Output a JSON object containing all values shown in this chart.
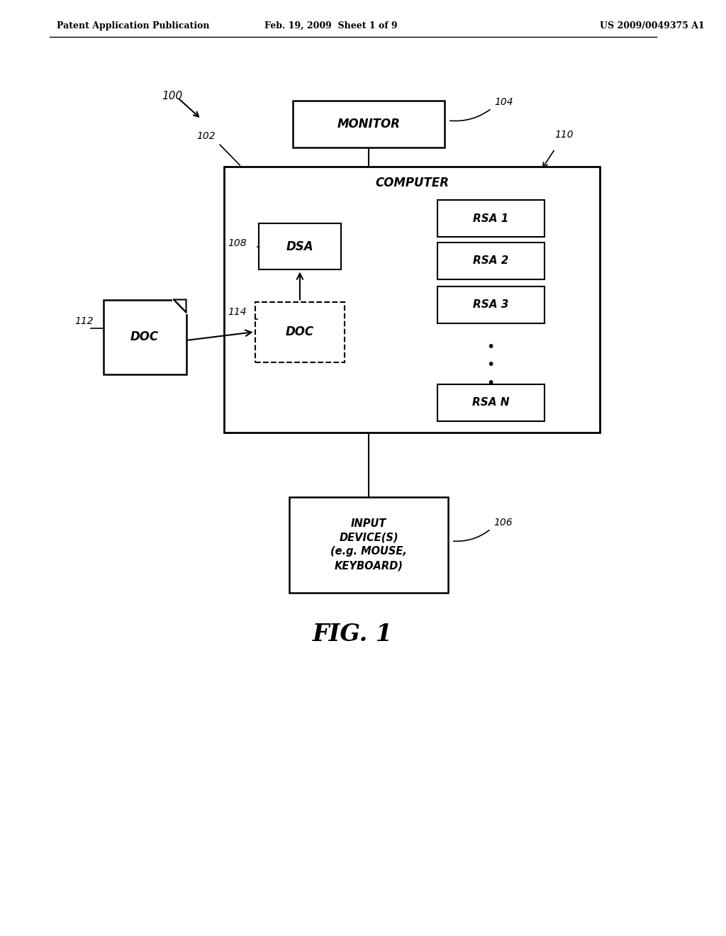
{
  "bg_color": "#ffffff",
  "header_left": "Patent Application Publication",
  "header_mid": "Feb. 19, 2009  Sheet 1 of 9",
  "header_right": "US 2009/0049375 A1",
  "fig_label": "FIG. 1",
  "label_100": "100",
  "label_102": "102",
  "label_104": "104",
  "label_106": "106",
  "label_108": "108",
  "label_110": "110",
  "label_112": "112",
  "label_114": "114",
  "monitor_text": "MONITOR",
  "computer_text": "COMPUTER",
  "dsa_text": "DSA",
  "doc_inner_text": "DOC",
  "doc_outer_text": "DOC",
  "input_text": "INPUT\nDEVICE(S)\n(e.g. MOUSE,\nKEYBOARD)",
  "rsa_labels": [
    "RSA 1",
    "RSA 2",
    "RSA 3",
    "RSA N"
  ],
  "dots": [
    "•",
    "•",
    "•"
  ]
}
